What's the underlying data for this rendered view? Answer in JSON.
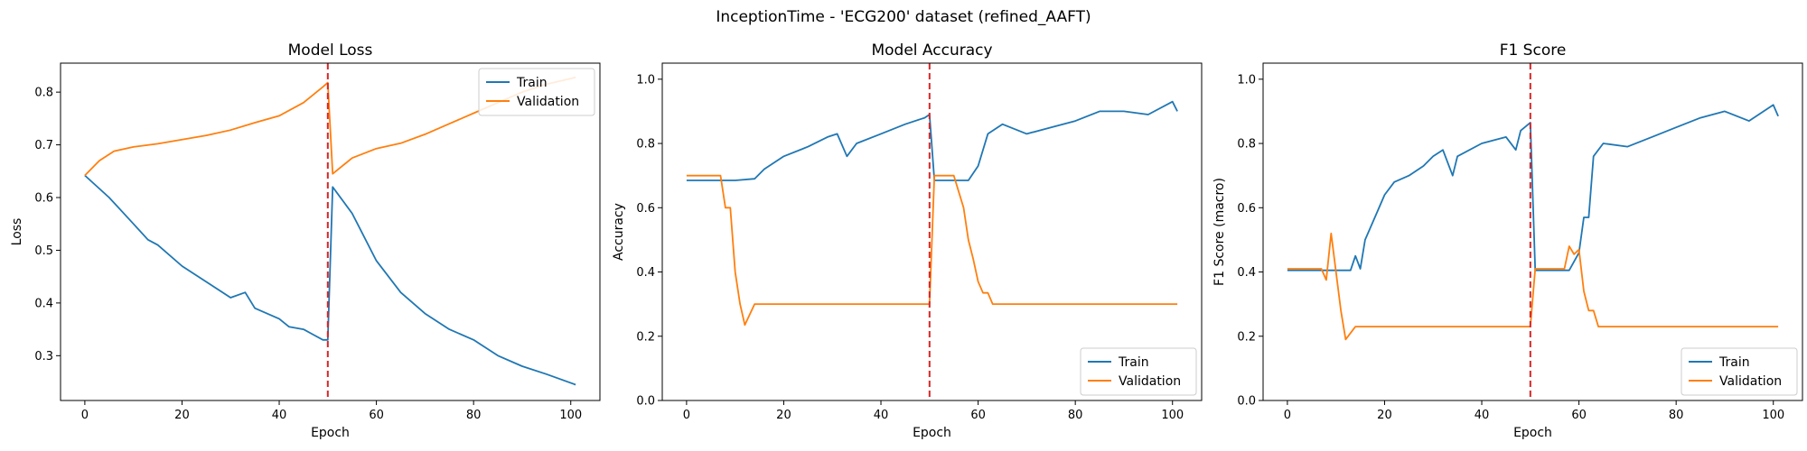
{
  "figure": {
    "suptitle": "InceptionTime - 'ECG200' dataset (refined_AAFT)",
    "colors": {
      "train": "#1f77b4",
      "validation": "#ff7f0e",
      "marker": "#d62728"
    }
  },
  "chart_data": [
    {
      "type": "line",
      "title": "Model Loss",
      "xlabel": "Epoch",
      "ylabel": "Loss",
      "xlim": [
        -5,
        106
      ],
      "ylim": [
        0.215,
        0.855
      ],
      "xticks": [
        0,
        20,
        40,
        60,
        80,
        100
      ],
      "yticks": [
        0.3,
        0.4,
        0.5,
        0.6,
        0.7,
        0.8
      ],
      "legend": "upper right",
      "vline_x": 50,
      "series": [
        {
          "name": "Train",
          "x": [
            0,
            5,
            10,
            13,
            15,
            20,
            25,
            30,
            33,
            35,
            40,
            42,
            45,
            47,
            49,
            50,
            51,
            55,
            60,
            65,
            70,
            75,
            80,
            85,
            90,
            95,
            101
          ],
          "y": [
            0.642,
            0.6,
            0.55,
            0.52,
            0.51,
            0.47,
            0.44,
            0.41,
            0.42,
            0.39,
            0.37,
            0.355,
            0.35,
            0.34,
            0.33,
            0.33,
            0.62,
            0.57,
            0.48,
            0.42,
            0.38,
            0.35,
            0.33,
            0.3,
            0.28,
            0.265,
            0.245
          ]
        },
        {
          "name": "Validation",
          "x": [
            0,
            3,
            6,
            10,
            15,
            20,
            25,
            30,
            35,
            40,
            45,
            49,
            50,
            51,
            55,
            60,
            65,
            70,
            75,
            80,
            85,
            90,
            95,
            101
          ],
          "y": [
            0.642,
            0.67,
            0.688,
            0.696,
            0.702,
            0.71,
            0.718,
            0.728,
            0.742,
            0.755,
            0.78,
            0.81,
            0.818,
            0.645,
            0.675,
            0.693,
            0.703,
            0.72,
            0.74,
            0.76,
            0.78,
            0.8,
            0.815,
            0.828
          ]
        }
      ]
    },
    {
      "type": "line",
      "title": "Model Accuracy",
      "xlabel": "Epoch",
      "ylabel": "Accuracy",
      "xlim": [
        -5,
        106
      ],
      "ylim": [
        0,
        1.05
      ],
      "xticks": [
        0,
        20,
        40,
        60,
        80,
        100
      ],
      "yticks": [
        0.0,
        0.2,
        0.4,
        0.6,
        0.8,
        1.0
      ],
      "legend": "lower right",
      "vline_x": 50,
      "series": [
        {
          "name": "Train",
          "x": [
            0,
            5,
            10,
            14,
            16,
            20,
            25,
            29,
            31,
            33,
            35,
            40,
            45,
            48,
            49,
            50,
            51,
            55,
            58,
            60,
            62,
            65,
            70,
            75,
            80,
            85,
            90,
            95,
            100,
            101
          ],
          "y": [
            0.685,
            0.685,
            0.685,
            0.69,
            0.72,
            0.76,
            0.79,
            0.82,
            0.83,
            0.76,
            0.8,
            0.83,
            0.86,
            0.875,
            0.88,
            0.89,
            0.685,
            0.685,
            0.685,
            0.73,
            0.83,
            0.86,
            0.83,
            0.85,
            0.87,
            0.9,
            0.9,
            0.89,
            0.93,
            0.9
          ]
        },
        {
          "name": "Validation",
          "x": [
            0,
            7,
            8,
            9,
            10,
            11,
            12,
            14,
            20,
            30,
            40,
            49,
            50,
            51,
            55,
            57,
            58,
            59,
            60,
            61,
            62,
            63,
            64,
            70,
            80,
            90,
            101
          ],
          "y": [
            0.7,
            0.7,
            0.6,
            0.6,
            0.4,
            0.3,
            0.235,
            0.3,
            0.3,
            0.3,
            0.3,
            0.3,
            0.3,
            0.7,
            0.7,
            0.6,
            0.5,
            0.44,
            0.37,
            0.335,
            0.335,
            0.3,
            0.3,
            0.3,
            0.3,
            0.3,
            0.3
          ]
        }
      ]
    },
    {
      "type": "line",
      "title": "F1 Score",
      "xlabel": "Epoch",
      "ylabel": "F1 Score (macro)",
      "xlim": [
        -5,
        106
      ],
      "ylim": [
        0,
        1.05
      ],
      "xticks": [
        0,
        20,
        40,
        60,
        80,
        100
      ],
      "yticks": [
        0.0,
        0.2,
        0.4,
        0.6,
        0.8,
        1.0
      ],
      "legend": "lower right",
      "vline_x": 50,
      "series": [
        {
          "name": "Train",
          "x": [
            0,
            5,
            10,
            13,
            14,
            15,
            16,
            18,
            20,
            22,
            25,
            28,
            30,
            32,
            34,
            35,
            40,
            45,
            47,
            48,
            50,
            51,
            55,
            58,
            60,
            61,
            62,
            63,
            65,
            70,
            75,
            80,
            85,
            90,
            95,
            100,
            101
          ],
          "y": [
            0.405,
            0.405,
            0.405,
            0.405,
            0.45,
            0.41,
            0.5,
            0.57,
            0.64,
            0.68,
            0.7,
            0.73,
            0.76,
            0.78,
            0.7,
            0.76,
            0.8,
            0.82,
            0.78,
            0.84,
            0.865,
            0.405,
            0.405,
            0.405,
            0.46,
            0.57,
            0.57,
            0.76,
            0.8,
            0.79,
            0.82,
            0.85,
            0.88,
            0.9,
            0.87,
            0.92,
            0.885
          ]
        },
        {
          "name": "Validation",
          "x": [
            0,
            7,
            8,
            9,
            10,
            11,
            12,
            14,
            20,
            30,
            40,
            49,
            50,
            51,
            55,
            57,
            58,
            59,
            60,
            61,
            62,
            63,
            64,
            70,
            80,
            90,
            101
          ],
          "y": [
            0.41,
            0.41,
            0.375,
            0.52,
            0.4,
            0.28,
            0.19,
            0.23,
            0.23,
            0.23,
            0.23,
            0.23,
            0.23,
            0.41,
            0.41,
            0.41,
            0.48,
            0.455,
            0.47,
            0.34,
            0.28,
            0.28,
            0.23,
            0.23,
            0.23,
            0.23,
            0.23
          ]
        }
      ]
    }
  ]
}
